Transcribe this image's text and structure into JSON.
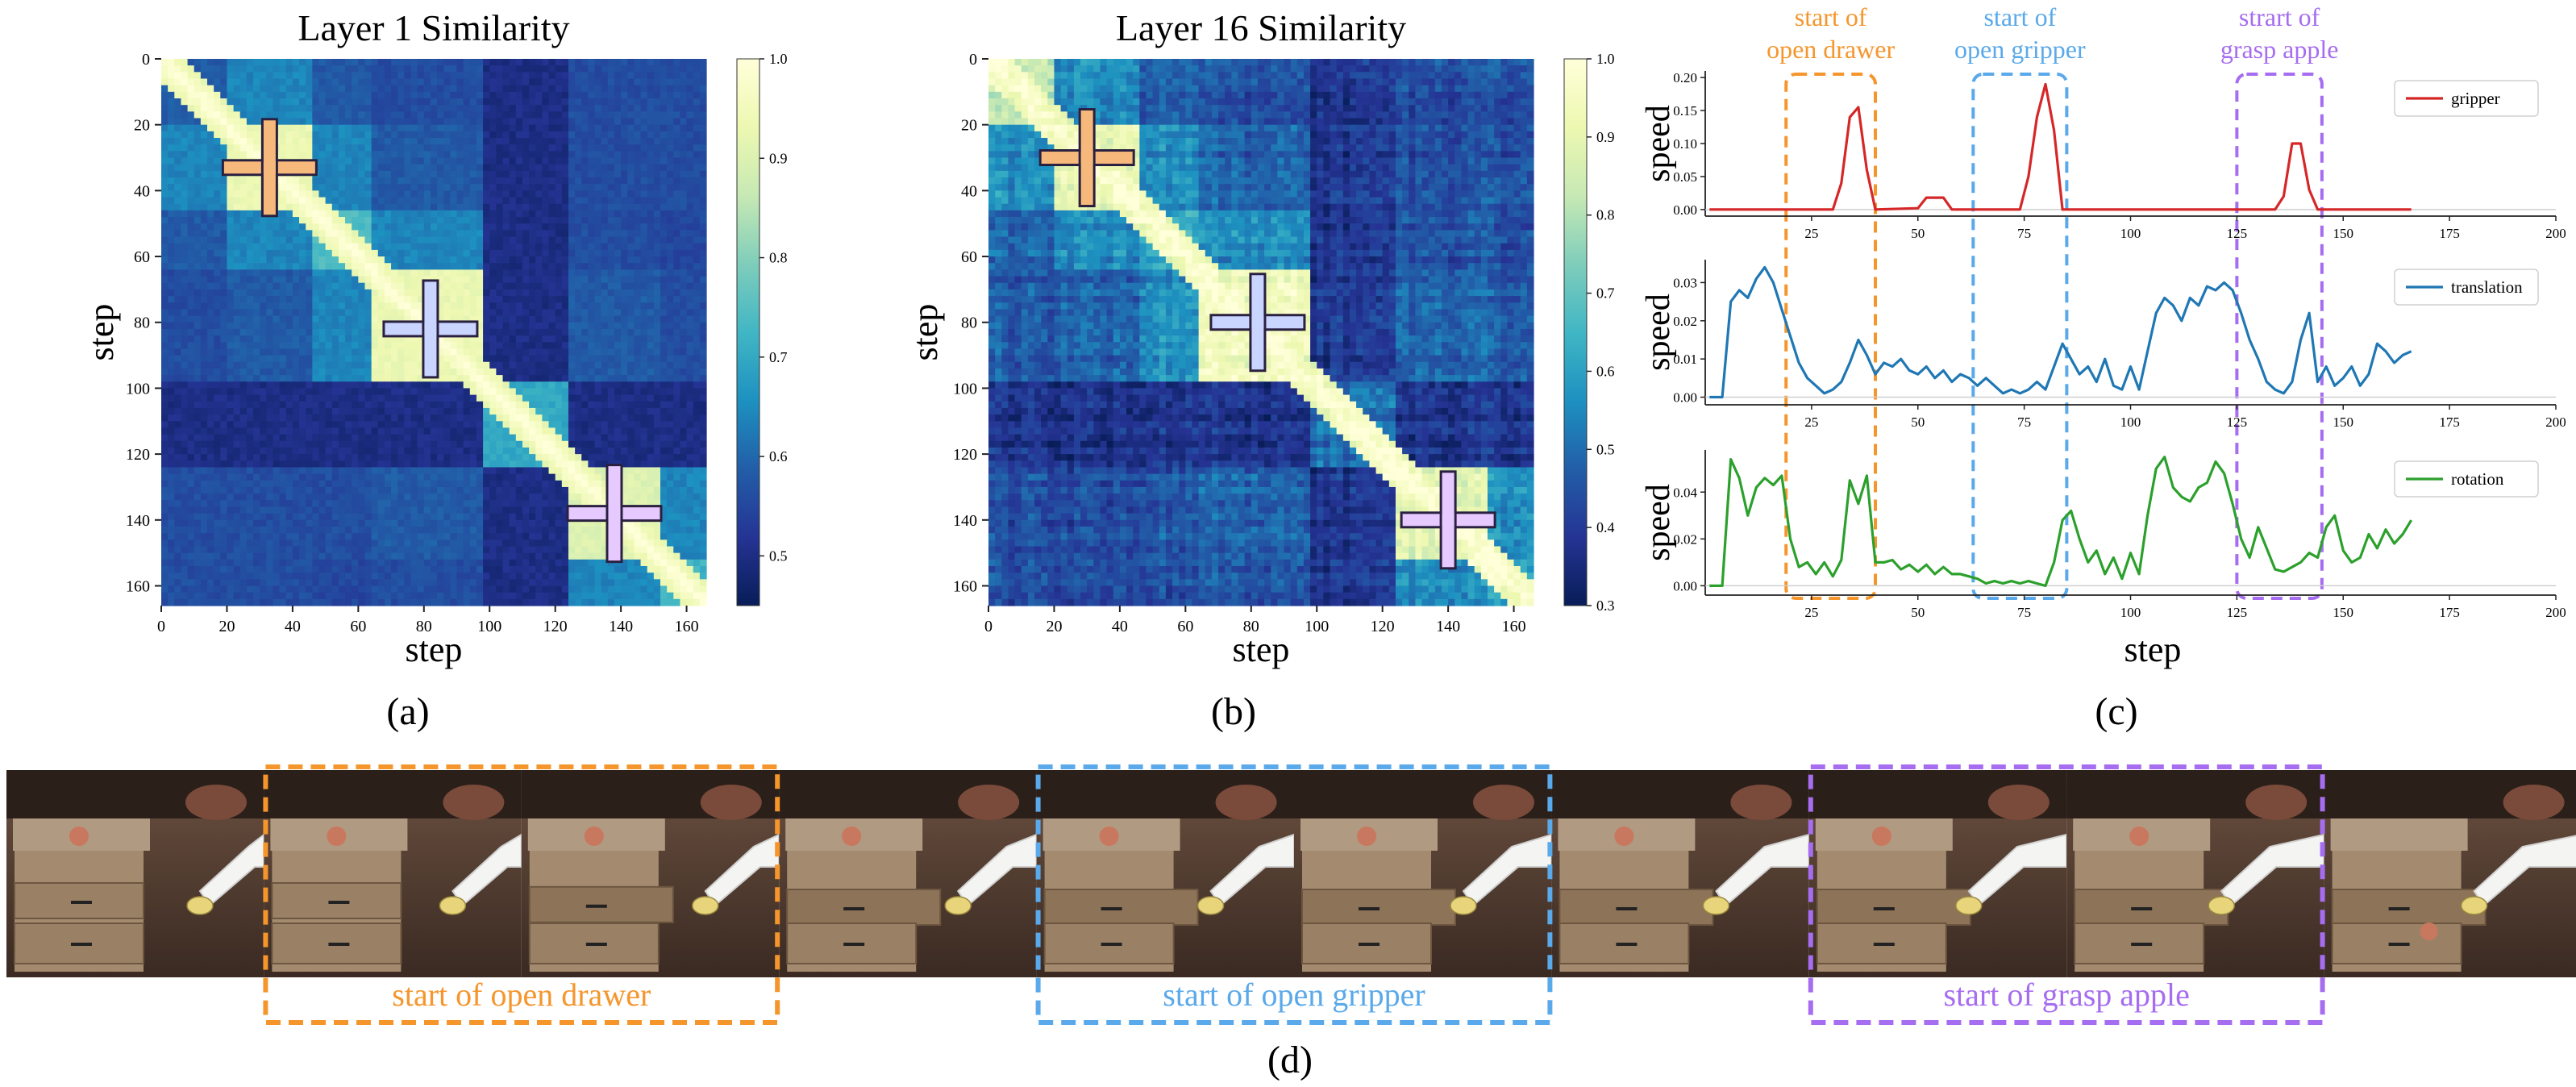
{
  "panels": {
    "a": {
      "label": "(a)"
    },
    "b": {
      "label": "(b)"
    },
    "c": {
      "label": "(c)"
    },
    "d": {
      "label": "(d)"
    }
  },
  "colors": {
    "orange": "#f5962d",
    "blue": "#5aa9ea",
    "purple": "#a66df0",
    "gripper": "#d62728",
    "translation": "#1f77b4",
    "rotation": "#2ca02c"
  },
  "icons": [
    "cross-marker-icon"
  ],
  "chart_data": [
    {
      "type": "heatmap",
      "title": "Layer 1 Similarity",
      "xlabel": "step",
      "ylabel": "step",
      "xticks": [
        0,
        20,
        40,
        60,
        80,
        100,
        120,
        140,
        160
      ],
      "yticks": [
        0,
        20,
        40,
        60,
        80,
        100,
        120,
        140,
        160
      ],
      "xlim": [
        0,
        166
      ],
      "ylim": [
        0,
        166
      ],
      "colorbar": {
        "min": 0.45,
        "max": 1.0,
        "ticks": [
          0.5,
          0.6,
          0.7,
          0.8,
          0.9,
          1.0
        ],
        "colormap": "YlGnBu"
      },
      "blocks": [
        [
          0,
          20,
          0.58
        ],
        [
          20,
          46,
          0.93
        ],
        [
          46,
          64,
          0.74
        ],
        [
          64,
          98,
          0.93
        ],
        [
          98,
          124,
          0.7
        ],
        [
          124,
          152,
          0.9
        ],
        [
          152,
          166,
          0.72
        ]
      ],
      "markers": [
        {
          "x": 33,
          "y": 33,
          "color": "orange"
        },
        {
          "x": 82,
          "y": 82,
          "color": "blue"
        },
        {
          "x": 138,
          "y": 138,
          "color": "purple"
        }
      ]
    },
    {
      "type": "heatmap",
      "title": "Layer 16 Similarity",
      "xlabel": "step",
      "ylabel": "step",
      "xticks": [
        0,
        20,
        40,
        60,
        80,
        100,
        120,
        140,
        160
      ],
      "yticks": [
        0,
        20,
        40,
        60,
        80,
        100,
        120,
        140,
        160
      ],
      "xlim": [
        0,
        166
      ],
      "ylim": [
        0,
        166
      ],
      "colorbar": {
        "min": 0.3,
        "max": 1.0,
        "ticks": [
          0.3,
          0.4,
          0.5,
          0.6,
          0.7,
          0.8,
          0.9,
          1.0
        ],
        "colormap": "YlGnBu"
      },
      "blocks": [
        [
          0,
          20,
          0.82
        ],
        [
          20,
          46,
          0.9
        ],
        [
          46,
          64,
          0.62
        ],
        [
          64,
          98,
          0.93
        ],
        [
          98,
          124,
          0.5
        ],
        [
          124,
          152,
          0.88
        ],
        [
          152,
          166,
          0.6
        ]
      ],
      "markers": [
        {
          "x": 30,
          "y": 30,
          "color": "orange"
        },
        {
          "x": 82,
          "y": 80,
          "color": "blue"
        },
        {
          "x": 140,
          "y": 140,
          "color": "purple"
        }
      ]
    },
    {
      "type": "line",
      "xlabel": "step",
      "xlim": [
        0,
        200
      ],
      "xticks": [
        25,
        50,
        75,
        100,
        125,
        150,
        175,
        200
      ],
      "legend_placement": "top-right",
      "phase_annotations": [
        {
          "line1": "start of",
          "line2": "open drawer",
          "x_start": 19,
          "x_end": 40,
          "color": "orange"
        },
        {
          "line1": "start of",
          "line2": "open gripper",
          "x_start": 63,
          "x_end": 85,
          "color": "blue"
        },
        {
          "line1": "strart of",
          "line2": "grasp apple",
          "x_start": 125,
          "x_end": 145,
          "color": "purple"
        }
      ],
      "subplots": [
        {
          "name": "gripper",
          "ylabel": "speed",
          "color": "gripper",
          "ylim": [
            -0.01,
            0.21
          ],
          "yticks": [
            "0.00",
            "0.05",
            "0.10",
            "0.15",
            "0.20"
          ],
          "x": [
            1,
            30,
            32,
            34,
            36,
            38,
            40,
            50,
            52,
            54,
            56,
            58,
            74,
            76,
            78,
            80,
            82,
            84,
            134,
            136,
            138,
            140,
            142,
            144,
            166
          ],
          "y": [
            0,
            0,
            0.04,
            0.14,
            0.155,
            0.06,
            0,
            0.002,
            0.018,
            0.018,
            0.018,
            0,
            0,
            0.05,
            0.14,
            0.19,
            0.12,
            0,
            0,
            0.02,
            0.1,
            0.1,
            0.03,
            0,
            0
          ]
        },
        {
          "name": "translation",
          "ylabel": "speed",
          "color": "translation",
          "ylim": [
            -0.002,
            0.036
          ],
          "yticks": [
            "0.00",
            "0.01",
            "0.02",
            "0.03"
          ],
          "x": [
            1,
            4,
            6,
            8,
            10,
            12,
            14,
            16,
            18,
            20,
            22,
            24,
            26,
            28,
            30,
            32,
            34,
            36,
            38,
            40,
            42,
            44,
            46,
            48,
            50,
            52,
            54,
            56,
            58,
            60,
            62,
            64,
            66,
            68,
            70,
            72,
            74,
            76,
            78,
            80,
            82,
            84,
            86,
            88,
            90,
            92,
            94,
            96,
            98,
            100,
            102,
            104,
            106,
            108,
            110,
            112,
            114,
            116,
            118,
            120,
            122,
            124,
            126,
            128,
            130,
            132,
            134,
            136,
            138,
            140,
            142,
            144,
            146,
            148,
            150,
            152,
            154,
            156,
            158,
            160,
            162,
            164,
            166
          ],
          "y": [
            0,
            0,
            0.025,
            0.028,
            0.026,
            0.031,
            0.034,
            0.03,
            0.023,
            0.016,
            0.009,
            0.005,
            0.003,
            0.001,
            0.002,
            0.004,
            0.009,
            0.015,
            0.011,
            0.006,
            0.009,
            0.008,
            0.01,
            0.007,
            0.006,
            0.008,
            0.005,
            0.007,
            0.004,
            0.006,
            0.005,
            0.003,
            0.005,
            0.003,
            0.001,
            0.002,
            0.001,
            0.002,
            0.004,
            0.002,
            0.008,
            0.014,
            0.01,
            0.006,
            0.008,
            0.004,
            0.01,
            0.003,
            0.002,
            0.008,
            0.002,
            0.012,
            0.022,
            0.026,
            0.024,
            0.02,
            0.026,
            0.024,
            0.029,
            0.028,
            0.03,
            0.028,
            0.022,
            0.015,
            0.01,
            0.004,
            0.002,
            0.001,
            0.004,
            0.015,
            0.022,
            0.004,
            0.008,
            0.003,
            0.005,
            0.008,
            0.003,
            0.006,
            0.014,
            0.012,
            0.009,
            0.011,
            0.012
          ]
        },
        {
          "name": "rotation",
          "ylabel": "speed",
          "color": "rotation",
          "ylim": [
            -0.004,
            0.058
          ],
          "yticks": [
            "0.00",
            "0.02",
            "0.04"
          ],
          "x": [
            1,
            4,
            6,
            8,
            10,
            12,
            14,
            16,
            18,
            20,
            22,
            24,
            26,
            28,
            30,
            32,
            34,
            36,
            38,
            40,
            42,
            44,
            46,
            48,
            50,
            52,
            54,
            56,
            58,
            60,
            62,
            64,
            66,
            68,
            70,
            72,
            74,
            76,
            78,
            80,
            82,
            84,
            86,
            88,
            90,
            92,
            94,
            96,
            98,
            100,
            102,
            104,
            106,
            108,
            110,
            112,
            114,
            116,
            118,
            120,
            122,
            124,
            126,
            128,
            130,
            132,
            134,
            136,
            138,
            140,
            142,
            144,
            146,
            148,
            150,
            152,
            154,
            156,
            158,
            160,
            162,
            164,
            166
          ],
          "y": [
            0,
            0,
            0.054,
            0.046,
            0.03,
            0.042,
            0.046,
            0.043,
            0.047,
            0.02,
            0.008,
            0.01,
            0.005,
            0.01,
            0.004,
            0.011,
            0.045,
            0.035,
            0.047,
            0.01,
            0.01,
            0.011,
            0.007,
            0.009,
            0.006,
            0.009,
            0.005,
            0.008,
            0.005,
            0.005,
            0.004,
            0.003,
            0.001,
            0.002,
            0.001,
            0.002,
            0.001,
            0.002,
            0.001,
            0.0,
            0.01,
            0.028,
            0.032,
            0.02,
            0.01,
            0.015,
            0.005,
            0.012,
            0.003,
            0.014,
            0.005,
            0.03,
            0.05,
            0.055,
            0.042,
            0.038,
            0.036,
            0.042,
            0.044,
            0.053,
            0.048,
            0.035,
            0.02,
            0.012,
            0.025,
            0.016,
            0.007,
            0.006,
            0.008,
            0.01,
            0.014,
            0.012,
            0.025,
            0.03,
            0.015,
            0.01,
            0.012,
            0.022,
            0.016,
            0.024,
            0.018,
            0.022,
            0.028
          ]
        }
      ]
    }
  ],
  "filmstrip": {
    "frame_count": 10,
    "captions": [
      {
        "text": "start of open drawer",
        "frames": [
          1,
          2
        ],
        "color": "orange"
      },
      {
        "text": "start of open gripper",
        "frames": [
          4,
          5
        ],
        "color": "blue"
      },
      {
        "text": "start of grasp apple",
        "frames": [
          7,
          8
        ],
        "color": "purple"
      }
    ]
  }
}
